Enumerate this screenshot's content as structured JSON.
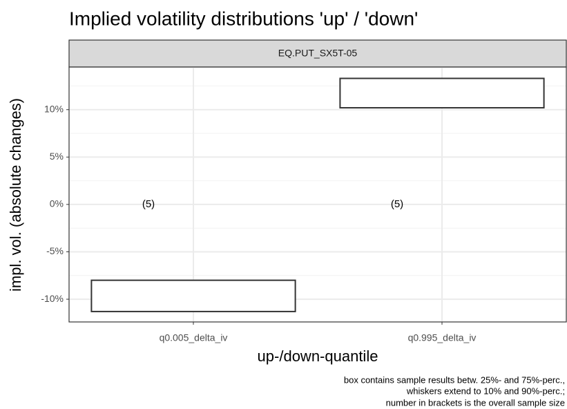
{
  "chart_data": {
    "type": "box",
    "title": "Implied volatility distributions 'up' / 'down'",
    "facet": "EQ.PUT_SX5T-05",
    "x_label": "up-/down-quantile",
    "y_label": "impl. vol. (absolute changes)",
    "caption": [
      "box contains sample results betw. 25%- and 75%-perc.,",
      "whiskers extend to 10% and 90%-perc.;",
      "number in brackets is the overall sample size"
    ],
    "categories": [
      "q0.005_delta_iv",
      "q0.995_delta_iv"
    ],
    "q1": [
      -11.3,
      10.2
    ],
    "q3": [
      -8.0,
      13.3
    ],
    "counts": [
      5,
      5
    ],
    "count_labels": [
      "(5)",
      "(5)"
    ],
    "color": "#333333",
    "ylim": [
      -12.4,
      14.5
    ],
    "yticks": [
      {
        "value": -10,
        "label": "-10%"
      },
      {
        "value": -5,
        "label": "-5%"
      },
      {
        "value": 0,
        "label": "0%"
      },
      {
        "value": 5,
        "label": "5%"
      },
      {
        "value": 10,
        "label": "10%"
      }
    ],
    "minor_yticks": [
      -7.5,
      -2.5,
      2.5,
      7.5,
      12.5
    ],
    "grid": true
  }
}
